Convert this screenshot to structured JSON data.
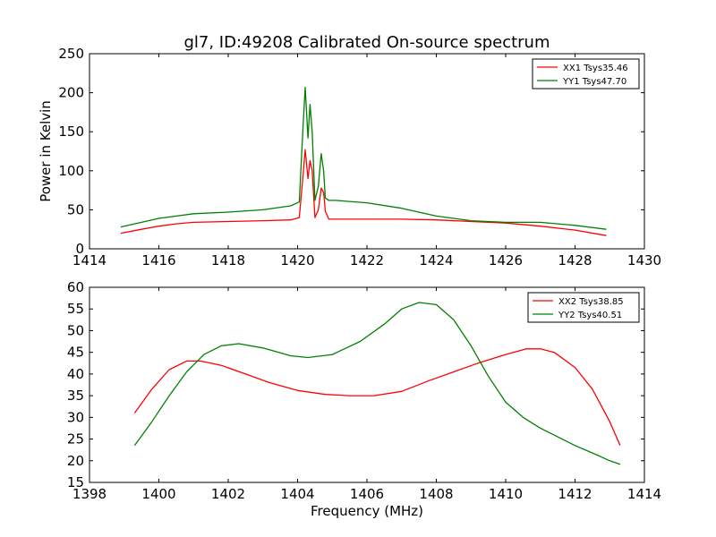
{
  "figure": {
    "title": "gl7, ID:49208 Calibrated On-source spectrum"
  },
  "chart_data": [
    {
      "type": "line",
      "title": "gl7, ID:49208 Calibrated On-source spectrum",
      "xlabel": "",
      "ylabel": "Power in Kelvin",
      "xlim": [
        1414,
        1430
      ],
      "ylim": [
        0,
        250
      ],
      "xticks": [
        1414,
        1416,
        1418,
        1420,
        1422,
        1424,
        1426,
        1428,
        1430
      ],
      "yticks": [
        0,
        50,
        100,
        150,
        200,
        250
      ],
      "grid": false,
      "legend_position": "top-right",
      "series": [
        {
          "name": "XX1 Tsys35.46",
          "color": "#ff0000",
          "x": [
            1414.9,
            1415.5,
            1416.0,
            1416.5,
            1417.0,
            1418.0,
            1419.0,
            1419.8,
            1420.05,
            1420.15,
            1420.22,
            1420.3,
            1420.36,
            1420.42,
            1420.5,
            1420.6,
            1420.68,
            1420.75,
            1420.8,
            1420.9,
            1421.1,
            1422.0,
            1423.0,
            1424.0,
            1425.0,
            1426.0,
            1427.0,
            1428.0,
            1428.9
          ],
          "y": [
            20,
            25,
            29,
            32,
            34,
            35,
            36,
            37,
            40,
            90,
            127,
            90,
            113,
            100,
            40,
            50,
            78,
            72,
            48,
            38,
            38,
            38,
            38,
            37,
            35,
            33,
            29,
            24,
            17
          ]
        },
        {
          "name": "YY1 Tsys47.70",
          "color": "#008000",
          "x": [
            1414.9,
            1415.5,
            1416.0,
            1416.5,
            1417.0,
            1418.0,
            1419.0,
            1419.8,
            1420.05,
            1420.15,
            1420.22,
            1420.3,
            1420.36,
            1420.42,
            1420.5,
            1420.6,
            1420.68,
            1420.75,
            1420.8,
            1420.9,
            1421.1,
            1422.0,
            1423.0,
            1424.0,
            1425.0,
            1426.0,
            1427.0,
            1428.0,
            1428.9
          ],
          "y": [
            28,
            34,
            39,
            42,
            45,
            47,
            50,
            55,
            60,
            150,
            207,
            142,
            185,
            150,
            62,
            80,
            122,
            100,
            65,
            62,
            62,
            59,
            52,
            42,
            36,
            34,
            34,
            30,
            25
          ]
        }
      ]
    },
    {
      "type": "line",
      "title": "",
      "xlabel": "Frequency (MHz)",
      "ylabel": "",
      "xlim": [
        1398,
        1414
      ],
      "ylim": [
        15,
        60
      ],
      "xticks": [
        1398,
        1400,
        1402,
        1404,
        1406,
        1408,
        1410,
        1412,
        1414
      ],
      "yticks": [
        15,
        20,
        25,
        30,
        35,
        40,
        45,
        50,
        55,
        60
      ],
      "grid": false,
      "legend_position": "top-right",
      "series": [
        {
          "name": "XX2 Tsys38.85",
          "color": "#ff0000",
          "x": [
            1399.3,
            1399.8,
            1400.3,
            1400.8,
            1401.2,
            1401.8,
            1402.5,
            1403.2,
            1404.0,
            1404.8,
            1405.5,
            1406.2,
            1407.0,
            1407.8,
            1408.5,
            1409.2,
            1410.0,
            1410.6,
            1411.0,
            1411.4,
            1412.0,
            1412.5,
            1413.0,
            1413.3
          ],
          "y": [
            31,
            36.5,
            41,
            43,
            43,
            42,
            40,
            38,
            36.2,
            35.3,
            35,
            35,
            36,
            38.5,
            40.5,
            42.5,
            44.5,
            45.8,
            45.8,
            45,
            41.5,
            36.5,
            29,
            23.5
          ]
        },
        {
          "name": "YY2 Tsys40.51",
          "color": "#008000",
          "x": [
            1399.3,
            1399.8,
            1400.3,
            1400.8,
            1401.3,
            1401.8,
            1402.3,
            1403.0,
            1403.8,
            1404.3,
            1405.0,
            1405.8,
            1406.5,
            1407.0,
            1407.5,
            1408.0,
            1408.5,
            1409.0,
            1409.5,
            1410.0,
            1410.5,
            1411.0,
            1411.5,
            1412.0,
            1412.5,
            1413.0,
            1413.3
          ],
          "y": [
            23.5,
            29,
            35,
            40.5,
            44.5,
            46.5,
            47,
            46,
            44.2,
            43.8,
            44.5,
            47.5,
            51.5,
            55,
            56.5,
            56,
            52.5,
            46.5,
            39.5,
            33.5,
            30,
            27.5,
            25.5,
            23.5,
            21.8,
            20,
            19.2
          ]
        }
      ]
    }
  ]
}
